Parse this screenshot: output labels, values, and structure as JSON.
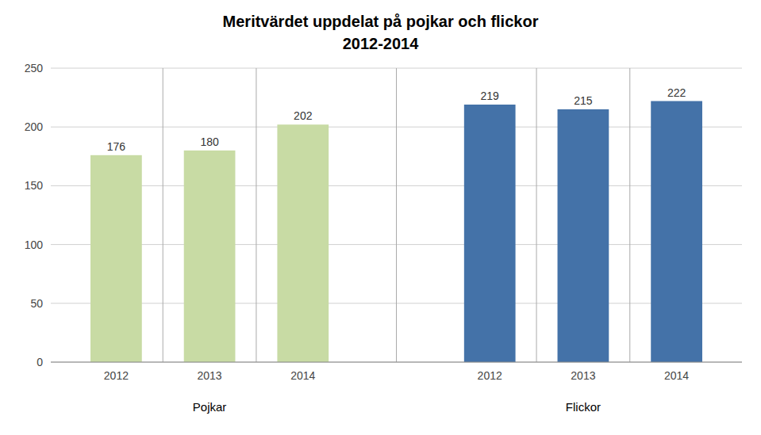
{
  "chart_data": {
    "type": "bar",
    "title": "Meritvärdet uppdelat på pojkar och flickor",
    "subtitle": "2012-2014",
    "categories": [
      "2012",
      "2013",
      "2014"
    ],
    "series": [
      {
        "name": "Pojkar",
        "color": "#c8dba4",
        "values": [
          176,
          180,
          202
        ]
      },
      {
        "name": "Flickor",
        "color": "#4472a8",
        "values": [
          219,
          215,
          222
        ]
      }
    ],
    "ylim": [
      0,
      250
    ],
    "yticks": [
      0,
      50,
      100,
      150,
      200,
      250
    ],
    "grid": true,
    "data_labels": true
  }
}
